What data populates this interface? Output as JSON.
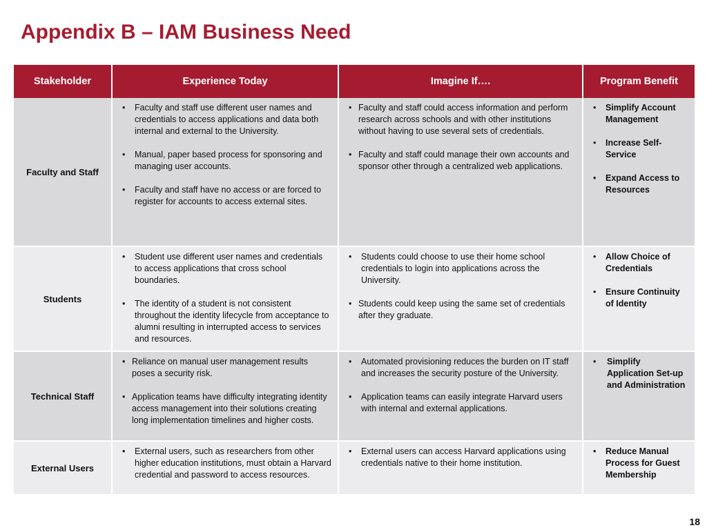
{
  "title": "Appendix B – IAM Business Need",
  "page_number": "18",
  "columns": [
    "Stakeholder",
    "Experience Today",
    "Imagine If….",
    "Program Benefit"
  ],
  "bullet": "•",
  "rows": [
    {
      "stakeholder": "Faculty and Staff",
      "experience": [
        "Faculty and staff use different user names and credentials to access applications and data both internal and external to the University.",
        "Manual, paper based process for  sponsoring and managing user accounts.",
        "Faculty and staff  have no access or are forced to register for accounts to access external sites."
      ],
      "imagine": [
        "Faculty and staff could access information and perform research across schools and with other institutions without having to use several sets of credentials.",
        "Faculty and staff could manage their own accounts and sponsor other through a centralized web applications."
      ],
      "benefit": [
        "Simplify Account Management",
        "Increase Self-Service",
        "Expand Access to Resources"
      ]
    },
    {
      "stakeholder": "Students",
      "experience": [
        "Student use different user names and credentials to access applications that cross school boundaries.",
        "The identity of a student is not consistent throughout the identity lifecycle from acceptance to alumni resulting in interrupted access to services and resources."
      ],
      "imagine": [
        "Students could choose to use their home school credentials to login into applications across the University.",
        "Students could keep using the same set of credentials after they graduate."
      ],
      "benefit": [
        "Allow Choice of Credentials",
        "Ensure Continuity of Identity"
      ]
    },
    {
      "stakeholder": "Technical Staff",
      "experience": [
        "Reliance on manual user management results poses a security risk.",
        "Application teams have difficulty integrating identity access management into their solutions creating long implementation timelines and higher costs."
      ],
      "imagine": [
        "Automated provisioning reduces the burden on IT staff and increases the security posture of the University.",
        "Application teams can easily integrate Harvard users with internal and external applications."
      ],
      "benefit": [
        "Simplify Application Set-up and Administration"
      ]
    },
    {
      "stakeholder": "External Users",
      "experience": [
        "External users, such as researchers from other higher education institutions, must obtain a Harvard credential and password to access resources."
      ],
      "imagine": [
        "External users can access Harvard applications using credentials native to their home institution."
      ],
      "benefit": [
        "Reduce Manual Process for Guest Membership"
      ]
    }
  ]
}
